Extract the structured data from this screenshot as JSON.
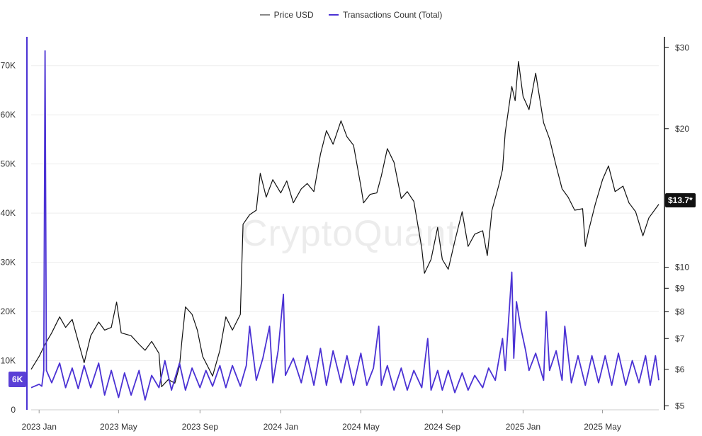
{
  "colors": {
    "price": "#111111",
    "transactions": "#4b32d4",
    "grid": "#eeeeee",
    "axis": "#333333"
  },
  "legend": {
    "price_label": "Price USD",
    "tx_label": "Transactions Count (Total)"
  },
  "watermark": "CryptoQuant",
  "badges": {
    "price": "$13.7*",
    "transactions": "6K"
  },
  "chart_data": {
    "type": "line",
    "legend_position": "top-center",
    "grid": true,
    "x": {
      "tick_labels": [
        "2023 Jan",
        "2023 May",
        "2023 Sep",
        "2024 Jan",
        "2024 May",
        "2024 Sep",
        "2025 Jan",
        "2025 May"
      ],
      "tick_dates": [
        "2023-01-01",
        "2023-05-01",
        "2023-09-01",
        "2024-01-01",
        "2024-05-01",
        "2024-09-01",
        "2025-01-01",
        "2025-05-01"
      ],
      "range": [
        "2022-12-20",
        "2025-07-25"
      ]
    },
    "y_left": {
      "label": "",
      "scale": "linear",
      "range": [
        0,
        75000
      ],
      "ticks": [
        0,
        10000,
        20000,
        30000,
        40000,
        50000,
        60000,
        70000
      ],
      "tick_labels": [
        "0",
        "10K",
        "20K",
        "30K",
        "40K",
        "50K",
        "60K",
        "70K"
      ]
    },
    "y_right": {
      "label": "",
      "scale": "log",
      "range": [
        4.9,
        31
      ],
      "ticks": [
        5,
        6,
        7,
        8,
        9,
        10,
        20,
        30
      ],
      "tick_labels": [
        "$5",
        "$6",
        "$7",
        "$8",
        "$9",
        "$10",
        "$20",
        "$30"
      ]
    },
    "series": [
      {
        "name": "Price USD",
        "axis": "right",
        "points": [
          [
            "2022-12-20",
            6.0
          ],
          [
            "2023-01-01",
            6.4
          ],
          [
            "2023-01-10",
            6.8
          ],
          [
            "2023-01-20",
            7.2
          ],
          [
            "2023-02-01",
            7.8
          ],
          [
            "2023-02-10",
            7.4
          ],
          [
            "2023-02-20",
            7.7
          ],
          [
            "2023-03-01",
            6.9
          ],
          [
            "2023-03-10",
            6.2
          ],
          [
            "2023-03-20",
            7.1
          ],
          [
            "2023-04-01",
            7.6
          ],
          [
            "2023-04-10",
            7.3
          ],
          [
            "2023-04-20",
            7.4
          ],
          [
            "2023-04-28",
            8.4
          ],
          [
            "2023-05-05",
            7.2
          ],
          [
            "2023-05-20",
            7.1
          ],
          [
            "2023-06-01",
            6.8
          ],
          [
            "2023-06-10",
            6.6
          ],
          [
            "2023-06-20",
            6.9
          ],
          [
            "2023-07-01",
            6.5
          ],
          [
            "2023-07-05",
            5.5
          ],
          [
            "2023-07-15",
            5.7
          ],
          [
            "2023-07-25",
            5.6
          ],
          [
            "2023-08-01",
            6.1
          ],
          [
            "2023-08-05",
            7.0
          ],
          [
            "2023-08-10",
            8.2
          ],
          [
            "2023-08-20",
            7.9
          ],
          [
            "2023-08-28",
            7.3
          ],
          [
            "2023-09-05",
            6.4
          ],
          [
            "2023-09-15",
            6.0
          ],
          [
            "2023-09-20",
            5.8
          ],
          [
            "2023-10-01",
            6.6
          ],
          [
            "2023-10-10",
            7.8
          ],
          [
            "2023-10-20",
            7.3
          ],
          [
            "2023-11-01",
            7.9
          ],
          [
            "2023-11-05",
            12.4
          ],
          [
            "2023-11-15",
            13.0
          ],
          [
            "2023-11-25",
            13.3
          ],
          [
            "2023-12-01",
            16.0
          ],
          [
            "2023-12-10",
            14.2
          ],
          [
            "2023-12-20",
            15.5
          ],
          [
            "2024-01-01",
            14.5
          ],
          [
            "2024-01-10",
            15.4
          ],
          [
            "2024-01-20",
            13.8
          ],
          [
            "2024-02-01",
            14.8
          ],
          [
            "2024-02-10",
            15.2
          ],
          [
            "2024-02-20",
            14.6
          ],
          [
            "2024-03-01",
            17.6
          ],
          [
            "2024-03-10",
            19.8
          ],
          [
            "2024-03-20",
            18.5
          ],
          [
            "2024-04-01",
            20.8
          ],
          [
            "2024-04-10",
            19.2
          ],
          [
            "2024-04-20",
            18.4
          ],
          [
            "2024-05-01",
            15.0
          ],
          [
            "2024-05-05",
            13.8
          ],
          [
            "2024-05-15",
            14.4
          ],
          [
            "2024-05-25",
            14.5
          ],
          [
            "2024-06-01",
            15.8
          ],
          [
            "2024-06-10",
            18.1
          ],
          [
            "2024-06-20",
            16.9
          ],
          [
            "2024-07-01",
            14.1
          ],
          [
            "2024-07-10",
            14.6
          ],
          [
            "2024-07-20",
            13.9
          ],
          [
            "2024-08-01",
            11.0
          ],
          [
            "2024-08-05",
            9.7
          ],
          [
            "2024-08-15",
            10.4
          ],
          [
            "2024-08-25",
            12.2
          ],
          [
            "2024-09-01",
            10.4
          ],
          [
            "2024-09-10",
            9.9
          ],
          [
            "2024-09-20",
            11.4
          ],
          [
            "2024-10-01",
            13.2
          ],
          [
            "2024-10-10",
            11.1
          ],
          [
            "2024-10-20",
            11.8
          ],
          [
            "2024-11-01",
            12.0
          ],
          [
            "2024-11-08",
            10.6
          ],
          [
            "2024-11-15",
            13.3
          ],
          [
            "2024-11-25",
            15.0
          ],
          [
            "2024-12-01",
            16.3
          ],
          [
            "2024-12-05",
            19.6
          ],
          [
            "2024-12-15",
            24.7
          ],
          [
            "2024-12-20",
            23.0
          ],
          [
            "2024-12-25",
            28.0
          ],
          [
            "2025-01-01",
            23.5
          ],
          [
            "2025-01-10",
            22.0
          ],
          [
            "2025-01-20",
            26.4
          ],
          [
            "2025-02-01",
            20.6
          ],
          [
            "2025-02-10",
            19.0
          ],
          [
            "2025-02-20",
            16.6
          ],
          [
            "2025-03-01",
            14.8
          ],
          [
            "2025-03-10",
            14.2
          ],
          [
            "2025-03-20",
            13.3
          ],
          [
            "2025-04-01",
            13.4
          ],
          [
            "2025-04-05",
            11.1
          ],
          [
            "2025-04-10",
            12.0
          ],
          [
            "2025-04-20",
            13.7
          ],
          [
            "2025-05-01",
            15.5
          ],
          [
            "2025-05-10",
            16.6
          ],
          [
            "2025-05-20",
            14.6
          ],
          [
            "2025-06-01",
            15.0
          ],
          [
            "2025-06-10",
            13.8
          ],
          [
            "2025-06-20",
            13.2
          ],
          [
            "2025-07-01",
            11.7
          ],
          [
            "2025-07-10",
            12.8
          ],
          [
            "2025-07-25",
            13.7
          ]
        ]
      },
      {
        "name": "Transactions Count (Total)",
        "axis": "left",
        "points": [
          [
            "2022-12-20",
            4500
          ],
          [
            "2023-01-01",
            5200
          ],
          [
            "2023-01-05",
            4800
          ],
          [
            "2023-01-08",
            8000
          ],
          [
            "2023-01-10",
            73000
          ],
          [
            "2023-01-12",
            8000
          ],
          [
            "2023-01-20",
            5500
          ],
          [
            "2023-02-01",
            9500
          ],
          [
            "2023-02-10",
            4500
          ],
          [
            "2023-02-20",
            8500
          ],
          [
            "2023-03-01",
            4300
          ],
          [
            "2023-03-10",
            9000
          ],
          [
            "2023-03-20",
            4500
          ],
          [
            "2023-04-01",
            9500
          ],
          [
            "2023-04-10",
            3000
          ],
          [
            "2023-04-20",
            8000
          ],
          [
            "2023-05-01",
            2500
          ],
          [
            "2023-05-10",
            7500
          ],
          [
            "2023-05-20",
            3000
          ],
          [
            "2023-06-01",
            8000
          ],
          [
            "2023-06-10",
            2000
          ],
          [
            "2023-06-20",
            7000
          ],
          [
            "2023-07-01",
            4500
          ],
          [
            "2023-07-10",
            10000
          ],
          [
            "2023-07-20",
            4000
          ],
          [
            "2023-08-01",
            9500
          ],
          [
            "2023-08-10",
            4000
          ],
          [
            "2023-08-20",
            8500
          ],
          [
            "2023-09-01",
            4500
          ],
          [
            "2023-09-10",
            8000
          ],
          [
            "2023-09-20",
            4800
          ],
          [
            "2023-10-01",
            9000
          ],
          [
            "2023-10-10",
            4500
          ],
          [
            "2023-10-20",
            9000
          ],
          [
            "2023-11-01",
            4800
          ],
          [
            "2023-11-10",
            9000
          ],
          [
            "2023-11-15",
            17000
          ],
          [
            "2023-11-25",
            6000
          ],
          [
            "2023-12-05",
            10500
          ],
          [
            "2023-12-15",
            17000
          ],
          [
            "2023-12-20",
            5500
          ],
          [
            "2023-12-28",
            12000
          ],
          [
            "2024-01-05",
            23500
          ],
          [
            "2024-01-08",
            7000
          ],
          [
            "2024-01-20",
            10500
          ],
          [
            "2024-02-01",
            5500
          ],
          [
            "2024-02-10",
            11000
          ],
          [
            "2024-02-20",
            5000
          ],
          [
            "2024-03-01",
            12500
          ],
          [
            "2024-03-10",
            5000
          ],
          [
            "2024-03-20",
            12000
          ],
          [
            "2024-04-01",
            5500
          ],
          [
            "2024-04-10",
            11000
          ],
          [
            "2024-04-20",
            5000
          ],
          [
            "2024-05-01",
            11500
          ],
          [
            "2024-05-10",
            5000
          ],
          [
            "2024-05-20",
            8500
          ],
          [
            "2024-05-28",
            17000
          ],
          [
            "2024-06-01",
            5000
          ],
          [
            "2024-06-10",
            9000
          ],
          [
            "2024-06-20",
            4000
          ],
          [
            "2024-07-01",
            8500
          ],
          [
            "2024-07-10",
            4000
          ],
          [
            "2024-07-20",
            8000
          ],
          [
            "2024-08-01",
            4500
          ],
          [
            "2024-08-10",
            14500
          ],
          [
            "2024-08-15",
            4000
          ],
          [
            "2024-08-25",
            8000
          ],
          [
            "2024-09-01",
            4000
          ],
          [
            "2024-09-10",
            8000
          ],
          [
            "2024-09-20",
            3500
          ],
          [
            "2024-10-01",
            7500
          ],
          [
            "2024-10-10",
            4000
          ],
          [
            "2024-10-20",
            7000
          ],
          [
            "2024-11-01",
            4500
          ],
          [
            "2024-11-10",
            8500
          ],
          [
            "2024-11-20",
            6000
          ],
          [
            "2024-12-01",
            14500
          ],
          [
            "2024-12-05",
            8000
          ],
          [
            "2024-12-15",
            28000
          ],
          [
            "2024-12-18",
            10500
          ],
          [
            "2024-12-22",
            22000
          ],
          [
            "2024-12-28",
            17000
          ],
          [
            "2025-01-05",
            12000
          ],
          [
            "2025-01-10",
            8000
          ],
          [
            "2025-01-20",
            11500
          ],
          [
            "2025-02-01",
            6000
          ],
          [
            "2025-02-05",
            20000
          ],
          [
            "2025-02-10",
            8000
          ],
          [
            "2025-02-20",
            12000
          ],
          [
            "2025-03-01",
            6000
          ],
          [
            "2025-03-05",
            17000
          ],
          [
            "2025-03-15",
            5500
          ],
          [
            "2025-03-25",
            11000
          ],
          [
            "2025-04-05",
            5000
          ],
          [
            "2025-04-15",
            11000
          ],
          [
            "2025-04-25",
            5500
          ],
          [
            "2025-05-05",
            11000
          ],
          [
            "2025-05-15",
            5000
          ],
          [
            "2025-05-25",
            11500
          ],
          [
            "2025-06-05",
            5000
          ],
          [
            "2025-06-15",
            10000
          ],
          [
            "2025-06-25",
            5500
          ],
          [
            "2025-07-05",
            11000
          ],
          [
            "2025-07-12",
            5000
          ],
          [
            "2025-07-20",
            11000
          ],
          [
            "2025-07-25",
            6000
          ]
        ]
      }
    ]
  }
}
